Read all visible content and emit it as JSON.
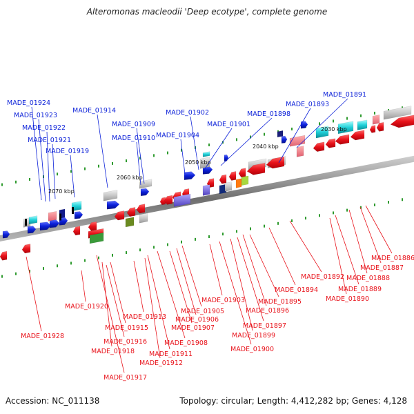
{
  "title": "Alteromonas macleodii 'Deep ecotype', complete genome",
  "accession_text": "Accession: NC_011138",
  "summary_text": "Topology: circular; Length: 4,412,282 bp; Genes: 4,128",
  "ruler_labels": [
    "2030 kbp",
    "2040 kbp",
    "2050 kbp",
    "2060 kbp",
    "2070 kbp"
  ],
  "colors": {
    "forward": "#0a1fd8",
    "reverse": "#e8121a",
    "backbone": "#808080"
  },
  "top_labels": [
    "MADE_01924",
    "MADE_01923",
    "MADE_01922",
    "MADE_01921",
    "MADE_01919",
    "MADE_01914",
    "MADE_01909",
    "MADE_01910",
    "MADE_01904",
    "MADE_01902",
    "MADE_01901",
    "MADE_01898",
    "MADE_01893",
    "MADE_01891"
  ],
  "bottom_labels": [
    "MADE_01928",
    "MADE_01920",
    "MADE_01917",
    "MADE_01918",
    "MADE_01916",
    "MADE_01915",
    "MADE_01913",
    "MADE_01912",
    "MADE_01911",
    "MADE_01908",
    "MADE_01907",
    "MADE_01906",
    "MADE_01905",
    "MADE_01903",
    "MADE_01900",
    "MADE_01899",
    "MADE_01897",
    "MADE_01896",
    "MADE_01895",
    "MADE_01894",
    "MADE_01892",
    "MADE_01890",
    "MADE_01889",
    "MADE_01888",
    "MADE_01887",
    "MADE_01886"
  ]
}
